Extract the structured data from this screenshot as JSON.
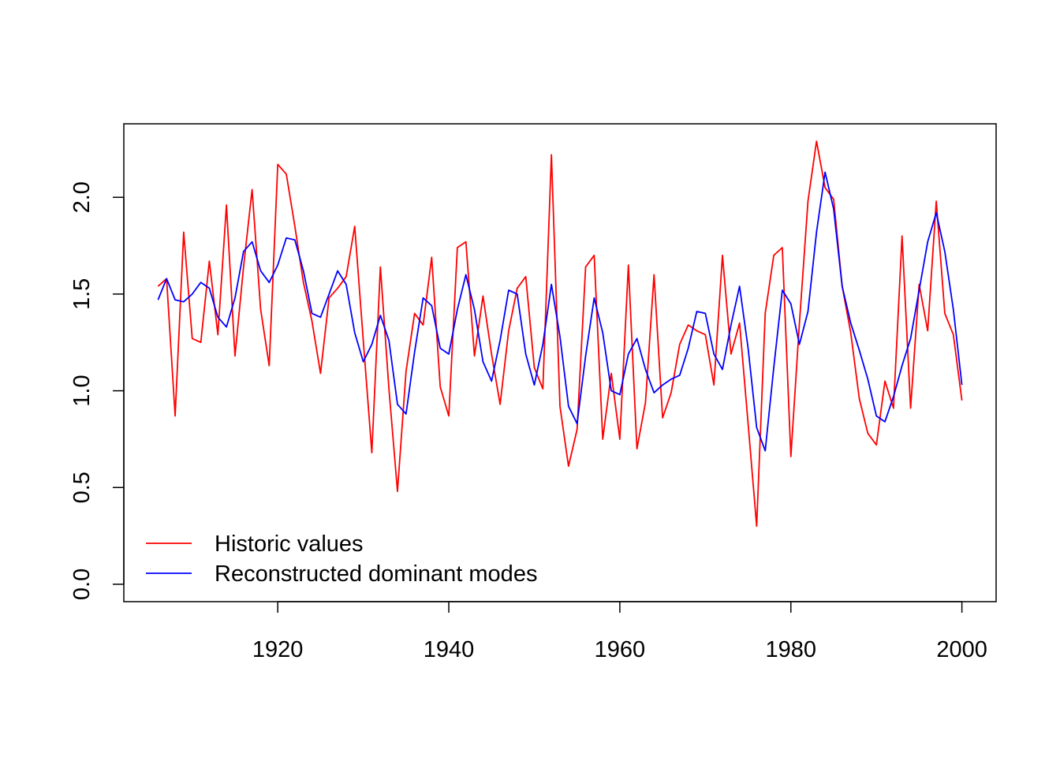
{
  "chart_data": {
    "type": "line",
    "title": "",
    "xlabel": "",
    "ylabel": "",
    "xlim": [
      1902,
      2004
    ],
    "ylim": [
      -0.09,
      2.38
    ],
    "xticks": [
      1920,
      1940,
      1960,
      1980,
      2000
    ],
    "yticks": [
      0.0,
      0.5,
      1.0,
      1.5,
      2.0
    ],
    "xtick_labels": [
      "1920",
      "1940",
      "1960",
      "1980",
      "2000"
    ],
    "ytick_labels": [
      "0.0",
      "0.5",
      "1.0",
      "1.5",
      "2.0"
    ],
    "grid": false,
    "legend_position": "bottom-left",
    "x": [
      1906,
      1907,
      1908,
      1909,
      1910,
      1911,
      1912,
      1913,
      1914,
      1915,
      1916,
      1917,
      1918,
      1919,
      1920,
      1921,
      1922,
      1923,
      1924,
      1925,
      1926,
      1927,
      1928,
      1929,
      1930,
      1931,
      1932,
      1933,
      1934,
      1935,
      1936,
      1937,
      1938,
      1939,
      1940,
      1941,
      1942,
      1943,
      1944,
      1945,
      1946,
      1947,
      1948,
      1949,
      1950,
      1951,
      1952,
      1953,
      1954,
      1955,
      1956,
      1957,
      1958,
      1959,
      1960,
      1961,
      1962,
      1963,
      1964,
      1965,
      1966,
      1967,
      1968,
      1969,
      1970,
      1971,
      1972,
      1973,
      1974,
      1975,
      1976,
      1977,
      1978,
      1979,
      1980,
      1981,
      1982,
      1983,
      1984,
      1985,
      1986,
      1987,
      1988,
      1989,
      1990,
      1991,
      1992,
      1993,
      1994,
      1995,
      1996,
      1997,
      1998,
      1999,
      2000
    ],
    "series": [
      {
        "name": "Historic values",
        "color": "#ff0000",
        "values": [
          1.54,
          1.58,
          0.87,
          1.82,
          1.27,
          1.25,
          1.67,
          1.29,
          1.96,
          1.18,
          1.64,
          2.04,
          1.42,
          1.13,
          2.17,
          2.12,
          1.85,
          1.56,
          1.36,
          1.09,
          1.48,
          1.53,
          1.59,
          1.85,
          1.26,
          0.68,
          1.64,
          1.01,
          0.48,
          1.1,
          1.4,
          1.34,
          1.69,
          1.02,
          0.87,
          1.74,
          1.77,
          1.18,
          1.49,
          1.19,
          0.93,
          1.31,
          1.53,
          1.59,
          1.12,
          1.01,
          2.22,
          0.92,
          0.61,
          0.8,
          1.64,
          1.7,
          0.75,
          1.09,
          0.75,
          1.65,
          0.7,
          0.94,
          1.6,
          0.86,
          0.99,
          1.24,
          1.34,
          1.31,
          1.29,
          1.03,
          1.7,
          1.19,
          1.35,
          0.83,
          0.3,
          1.4,
          1.7,
          1.74,
          0.66,
          1.35,
          1.98,
          2.29,
          2.05,
          1.99,
          1.54,
          1.3,
          0.96,
          0.78,
          0.72,
          1.05,
          0.91,
          1.8,
          0.91,
          1.55,
          1.31,
          1.98,
          1.4,
          1.29,
          0.95
        ]
      },
      {
        "name": "Reconstructed dominant modes",
        "color": "#0000ff",
        "values": [
          1.47,
          1.58,
          1.47,
          1.46,
          1.5,
          1.56,
          1.53,
          1.38,
          1.33,
          1.48,
          1.72,
          1.77,
          1.62,
          1.56,
          1.65,
          1.79,
          1.78,
          1.62,
          1.4,
          1.38,
          1.5,
          1.62,
          1.55,
          1.3,
          1.15,
          1.24,
          1.39,
          1.26,
          0.93,
          0.88,
          1.2,
          1.48,
          1.44,
          1.22,
          1.19,
          1.42,
          1.6,
          1.42,
          1.15,
          1.05,
          1.26,
          1.52,
          1.5,
          1.19,
          1.03,
          1.24,
          1.55,
          1.28,
          0.92,
          0.83,
          1.18,
          1.48,
          1.3,
          1.0,
          0.98,
          1.19,
          1.27,
          1.11,
          0.99,
          1.03,
          1.06,
          1.08,
          1.22,
          1.41,
          1.4,
          1.19,
          1.11,
          1.34,
          1.54,
          1.22,
          0.81,
          0.69,
          1.12,
          1.52,
          1.45,
          1.24,
          1.41,
          1.82,
          2.13,
          1.94,
          1.54,
          1.35,
          1.21,
          1.06,
          0.87,
          0.84,
          0.97,
          1.13,
          1.27,
          1.52,
          1.77,
          1.92,
          1.72,
          1.42,
          1.03
        ]
      }
    ]
  }
}
